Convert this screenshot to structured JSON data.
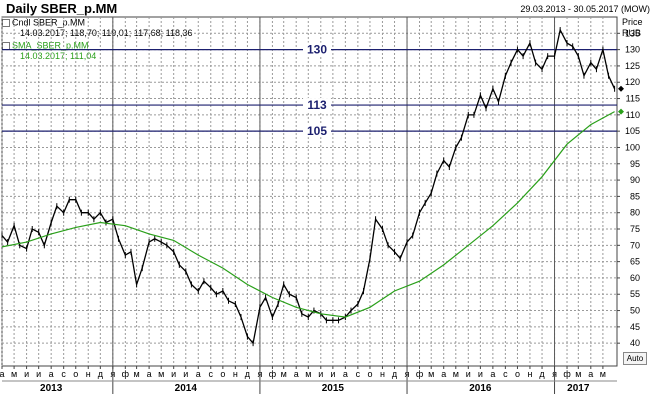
{
  "header": {
    "title": "Daily SBER_p.MM",
    "date_range": "29.03.2013 - 30.05.2017 (MOW)"
  },
  "legend": {
    "candles_name": "Cndl SBER_p.MM",
    "candles_values": "14.03.2017; 118,70; 119,01; 117,68; 118,36",
    "sma_name": "SMA_SBER_p.MM",
    "sma_values": "14.03.2017; 111,04"
  },
  "axis": {
    "price_label": "Price",
    "currency_label": "RUB",
    "auto_button": "Auto"
  },
  "colors": {
    "price_line": "#000000",
    "sma_line": "#2aa01a",
    "hline": "#1b1f6e",
    "hline_label": "#1b1f6e",
    "grid": "#9a9a9a",
    "year_separator": "#5a5a5a",
    "sma_legend": "#2aa01a"
  },
  "chart_data": {
    "type": "line",
    "title": "Daily SBER_p.MM",
    "ylim": [
      33,
      140
    ],
    "y_ticks": [
      40,
      45,
      50,
      55,
      60,
      65,
      70,
      75,
      80,
      85,
      90,
      95,
      100,
      105,
      110,
      115,
      120,
      125,
      130,
      135
    ],
    "y_tick_labels": [
      "40",
      "45",
      "50",
      "55",
      "60",
      "65",
      "70",
      "75",
      "80",
      "85",
      "90",
      "95",
      "100",
      "105",
      "110",
      "115",
      "120",
      "125",
      "130",
      "135"
    ],
    "x_range": [
      "2013-04-01",
      "2017-06-05"
    ],
    "month_labels": [
      {
        "date": "2013-04-01",
        "label": "а"
      },
      {
        "date": "2013-05-01",
        "label": "м"
      },
      {
        "date": "2013-06-01",
        "label": "и"
      },
      {
        "date": "2013-07-01",
        "label": "и"
      },
      {
        "date": "2013-08-01",
        "label": "а"
      },
      {
        "date": "2013-09-01",
        "label": "с"
      },
      {
        "date": "2013-10-01",
        "label": "о"
      },
      {
        "date": "2013-11-01",
        "label": "н"
      },
      {
        "date": "2013-12-01",
        "label": "д"
      },
      {
        "date": "2014-01-01",
        "label": "я"
      },
      {
        "date": "2014-02-01",
        "label": "ф"
      },
      {
        "date": "2014-03-01",
        "label": "м"
      },
      {
        "date": "2014-04-01",
        "label": "а"
      },
      {
        "date": "2014-05-01",
        "label": "м"
      },
      {
        "date": "2014-06-01",
        "label": "и"
      },
      {
        "date": "2014-07-01",
        "label": "и"
      },
      {
        "date": "2014-08-01",
        "label": "а"
      },
      {
        "date": "2014-09-01",
        "label": "с"
      },
      {
        "date": "2014-10-01",
        "label": "о"
      },
      {
        "date": "2014-11-01",
        "label": "н"
      },
      {
        "date": "2014-12-01",
        "label": "д"
      },
      {
        "date": "2015-01-01",
        "label": "я"
      },
      {
        "date": "2015-02-01",
        "label": "ф"
      },
      {
        "date": "2015-03-01",
        "label": "м"
      },
      {
        "date": "2015-04-01",
        "label": "а"
      },
      {
        "date": "2015-05-01",
        "label": "м"
      },
      {
        "date": "2015-06-01",
        "label": "и"
      },
      {
        "date": "2015-07-01",
        "label": "и"
      },
      {
        "date": "2015-08-01",
        "label": "а"
      },
      {
        "date": "2015-09-01",
        "label": "с"
      },
      {
        "date": "2015-10-01",
        "label": "о"
      },
      {
        "date": "2015-11-01",
        "label": "н"
      },
      {
        "date": "2015-12-01",
        "label": "д"
      },
      {
        "date": "2016-01-01",
        "label": "я"
      },
      {
        "date": "2016-02-01",
        "label": "ф"
      },
      {
        "date": "2016-03-01",
        "label": "м"
      },
      {
        "date": "2016-04-01",
        "label": "а"
      },
      {
        "date": "2016-05-01",
        "label": "м"
      },
      {
        "date": "2016-06-01",
        "label": "и"
      },
      {
        "date": "2016-07-01",
        "label": "и"
      },
      {
        "date": "2016-08-01",
        "label": "а"
      },
      {
        "date": "2016-09-01",
        "label": "с"
      },
      {
        "date": "2016-10-01",
        "label": "о"
      },
      {
        "date": "2016-11-01",
        "label": "н"
      },
      {
        "date": "2016-12-01",
        "label": "д"
      },
      {
        "date": "2017-01-01",
        "label": "я"
      },
      {
        "date": "2017-02-01",
        "label": "ф"
      },
      {
        "date": "2017-03-01",
        "label": "м"
      },
      {
        "date": "2017-04-01",
        "label": "а"
      },
      {
        "date": "2017-05-01",
        "label": "м"
      }
    ],
    "year_labels": [
      {
        "date": "2013-08-01",
        "label": "2013"
      },
      {
        "date": "2014-07-01",
        "label": "2014"
      },
      {
        "date": "2015-07-01",
        "label": "2015"
      },
      {
        "date": "2016-07-01",
        "label": "2016"
      },
      {
        "date": "2017-03-01",
        "label": "2017"
      }
    ],
    "year_separators": [
      "2014-01-01",
      "2015-01-01",
      "2016-01-01",
      "2017-01-01"
    ],
    "horizontal_lines": [
      {
        "value": 130,
        "label": "130"
      },
      {
        "value": 113,
        "label": "113"
      },
      {
        "value": 105,
        "label": "105"
      }
    ],
    "series": [
      {
        "name": "Cndl SBER_p.MM",
        "x": [
          "2013-04-01",
          "2013-04-15",
          "2013-05-01",
          "2013-05-15",
          "2013-06-01",
          "2013-06-15",
          "2013-07-01",
          "2013-07-15",
          "2013-08-01",
          "2013-08-15",
          "2013-09-01",
          "2013-09-15",
          "2013-10-01",
          "2013-10-15",
          "2013-11-01",
          "2013-11-15",
          "2013-12-01",
          "2013-12-15",
          "2014-01-01",
          "2014-01-15",
          "2014-02-01",
          "2014-02-15",
          "2014-03-01",
          "2014-03-15",
          "2014-04-01",
          "2014-04-15",
          "2014-05-01",
          "2014-05-15",
          "2014-06-01",
          "2014-06-15",
          "2014-07-01",
          "2014-07-15",
          "2014-08-01",
          "2014-08-15",
          "2014-09-01",
          "2014-09-15",
          "2014-10-01",
          "2014-10-15",
          "2014-11-01",
          "2014-11-15",
          "2014-12-01",
          "2014-12-15",
          "2015-01-01",
          "2015-01-15",
          "2015-02-01",
          "2015-02-15",
          "2015-03-01",
          "2015-03-15",
          "2015-04-01",
          "2015-04-15",
          "2015-05-01",
          "2015-05-15",
          "2015-06-01",
          "2015-06-15",
          "2015-07-01",
          "2015-07-15",
          "2015-08-01",
          "2015-08-15",
          "2015-09-01",
          "2015-09-15",
          "2015-10-01",
          "2015-10-15",
          "2015-11-01",
          "2015-11-15",
          "2015-12-01",
          "2015-12-15",
          "2016-01-01",
          "2016-01-15",
          "2016-02-01",
          "2016-02-15",
          "2016-03-01",
          "2016-03-15",
          "2016-04-01",
          "2016-04-15",
          "2016-05-01",
          "2016-05-15",
          "2016-06-01",
          "2016-06-15",
          "2016-07-01",
          "2016-07-15",
          "2016-08-01",
          "2016-08-15",
          "2016-09-01",
          "2016-09-15",
          "2016-10-01",
          "2016-10-15",
          "2016-11-01",
          "2016-11-15",
          "2016-12-01",
          "2016-12-15",
          "2017-01-01",
          "2017-01-15",
          "2017-02-01",
          "2017-02-15",
          "2017-03-01",
          "2017-03-15",
          "2017-04-01",
          "2017-04-15",
          "2017-05-01",
          "2017-05-15",
          "2017-05-30"
        ],
        "values": [
          73,
          71,
          76,
          70,
          69,
          75,
          74,
          70,
          77,
          82,
          80,
          84,
          84,
          80,
          80,
          78,
          80,
          77,
          78,
          72,
          67,
          68,
          58,
          63,
          71,
          72,
          71,
          70,
          68,
          64,
          62,
          58,
          56,
          59,
          57,
          55,
          56,
          53,
          52,
          48,
          42,
          40,
          51,
          54,
          48,
          52,
          58,
          55,
          54,
          49,
          48,
          50,
          49,
          47,
          47,
          47,
          48,
          50,
          52,
          56,
          66,
          78,
          75,
          70,
          68,
          66,
          71,
          73,
          80,
          83,
          86,
          92,
          96,
          94,
          100,
          103,
          110,
          110,
          116,
          112,
          118,
          114,
          122,
          126,
          130,
          128,
          132,
          126,
          124,
          128,
          128,
          136,
          132,
          131,
          128,
          122,
          126,
          124,
          130,
          122,
          118
        ]
      },
      {
        "name": "SMA_SBER_p.MM",
        "x": [
          "2013-04-01",
          "2013-06-01",
          "2013-08-01",
          "2013-10-01",
          "2013-12-01",
          "2014-02-01",
          "2014-04-01",
          "2014-06-01",
          "2014-08-01",
          "2014-10-01",
          "2014-12-01",
          "2015-02-01",
          "2015-04-01",
          "2015-06-01",
          "2015-08-01",
          "2015-10-01",
          "2015-12-01",
          "2016-02-01",
          "2016-04-01",
          "2016-06-01",
          "2016-08-01",
          "2016-10-01",
          "2016-12-01",
          "2017-02-01",
          "2017-04-01",
          "2017-05-30"
        ],
        "values": [
          69.5,
          71,
          73.5,
          75.5,
          77,
          76,
          73.5,
          71.5,
          67,
          63,
          58,
          54,
          51,
          49,
          48,
          51,
          56,
          59,
          64,
          70,
          76,
          83,
          91,
          101,
          107,
          111
        ]
      }
    ]
  }
}
